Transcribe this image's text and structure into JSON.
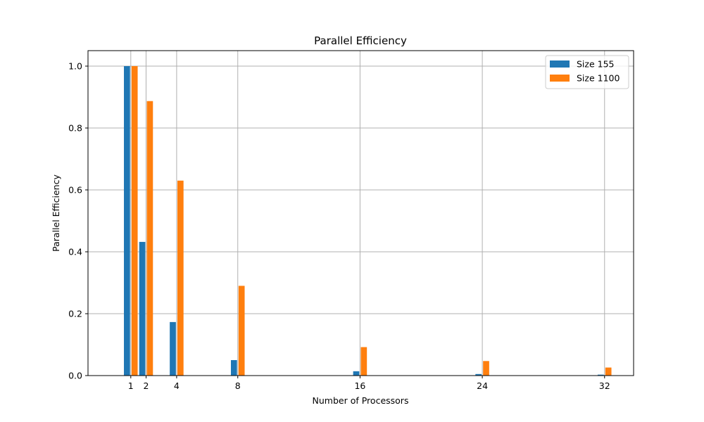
{
  "chart_data": {
    "type": "bar",
    "title": "Parallel Efficiency",
    "xlabel": "Number of Processors",
    "ylabel": "Parallel Efficiency",
    "x": [
      1,
      2,
      4,
      8,
      16,
      24,
      32
    ],
    "xticks": [
      "1",
      "2",
      "4",
      "8",
      "16",
      "24",
      "32"
    ],
    "xlim": [
      -1.8,
      33.9
    ],
    "ylim": [
      0,
      1.05
    ],
    "yticks": [
      "0.0",
      "0.2",
      "0.4",
      "0.6",
      "0.8",
      "1.0"
    ],
    "grid": true,
    "legend_position": "top-right",
    "series": [
      {
        "name": "Size 155",
        "color": "#1f77b4",
        "values": [
          1.0,
          0.432,
          0.173,
          0.05,
          0.014,
          0.005,
          0.003
        ]
      },
      {
        "name": "Size 1100",
        "color": "#ff7f0e",
        "values": [
          1.0,
          0.887,
          0.63,
          0.29,
          0.092,
          0.047,
          0.026
        ]
      }
    ]
  }
}
